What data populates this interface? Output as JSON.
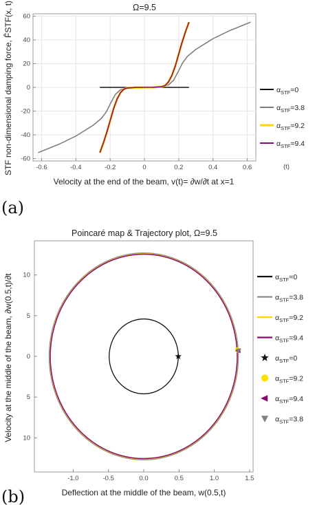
{
  "panel_labels": [
    "(a)",
    "(b)"
  ],
  "chart_data": [
    {
      "type": "line",
      "title": "Ω=9.5",
      "xlabel": "Velocity at the end of the beam,  v(t)= ∂w/∂t  at x=1",
      "ylabel": "STF non-dimensional damping force,  F̂STF(x, t)",
      "stray_label": "(t)",
      "xlim": [
        -0.65,
        0.65
      ],
      "ylim": [
        -62,
        62
      ],
      "xticks": [
        -0.6,
        -0.4,
        -0.2,
        0,
        0.2,
        0.4,
        0.6
      ],
      "xtick_labels": [
        "-0.6",
        "-0.4",
        "-0.2",
        "0",
        "0.2",
        "0.4",
        "0.6"
      ],
      "yticks": [
        -60,
        -40,
        -20,
        0,
        20,
        40,
        60
      ],
      "ytick_labels": [
        "-60",
        "-40",
        "-20",
        "0",
        "20",
        "40",
        "60"
      ],
      "grid": true,
      "legend_position": "right",
      "series": [
        {
          "name": "αSTF=0",
          "sym": "α",
          "sub": "STF",
          "val": "=0",
          "color": "#111111",
          "x": [
            -0.26,
            0.26
          ],
          "y": [
            0,
            0
          ]
        },
        {
          "name": "αSTF=3.8",
          "sym": "α",
          "sub": "STF",
          "val": "=3.8",
          "color": "#7f7f7f",
          "x": [
            -0.62,
            -0.5,
            -0.4,
            -0.3,
            -0.25,
            -0.22,
            -0.2,
            -0.17,
            -0.14,
            -0.1,
            -0.05,
            0,
            0.05,
            0.1,
            0.14,
            0.17,
            0.2,
            0.22,
            0.25,
            0.3,
            0.4,
            0.5,
            0.62
          ],
          "y": [
            -55,
            -48,
            -41,
            -32,
            -26,
            -20,
            -14,
            -6,
            -2,
            -0.4,
            -0.05,
            0,
            0.05,
            0.4,
            2,
            6,
            14,
            20,
            26,
            32,
            41,
            48,
            55
          ]
        },
        {
          "name": "αSTF=9.2",
          "sym": "α",
          "sub": "STF",
          "val": "=9.2",
          "color": "#ffd700",
          "x": [
            -0.26,
            -0.24,
            -0.22,
            -0.2,
            -0.18,
            -0.16,
            -0.14,
            -0.12,
            -0.1,
            -0.05,
            0,
            0.05,
            0.1,
            0.12,
            0.14,
            0.16,
            0.18,
            0.2,
            0.22,
            0.24,
            0.26
          ],
          "y": [
            -55,
            -47,
            -38,
            -28,
            -18,
            -10,
            -4.5,
            -1.5,
            -0.5,
            -0.05,
            0,
            0.05,
            0.5,
            1.5,
            4.5,
            10,
            18,
            28,
            38,
            47,
            55
          ]
        },
        {
          "name": "αSTF=9.4",
          "sym": "α",
          "sub": "STF",
          "val": "=9.4",
          "color": "#8b0a6f",
          "x": [
            -0.26,
            -0.24,
            -0.22,
            -0.2,
            -0.18,
            -0.16,
            -0.14,
            -0.12,
            -0.1,
            -0.05,
            0,
            0.05,
            0.1,
            0.12,
            0.14,
            0.16,
            0.18,
            0.2,
            0.22,
            0.24,
            0.26
          ],
          "y": [
            -55,
            -47,
            -38,
            -28,
            -18,
            -10,
            -4.5,
            -1.5,
            -0.5,
            -0.05,
            0,
            0.05,
            0.5,
            1.5,
            4.5,
            10,
            18,
            28,
            38,
            47,
            55
          ]
        }
      ]
    },
    {
      "type": "line",
      "title": "Poincaré map & Trajectory plot, Ω=9.5",
      "xlabel": "Deflection at the middle of the beam, w(0.5,t)",
      "ylabel": "Velocity at the middle of the beam,  ∂w(0.5,t)/∂t",
      "xlim": [
        -1.55,
        1.55
      ],
      "ylim": [
        -14.2,
        14.2
      ],
      "xticks": [
        -1.0,
        -0.5,
        0.0,
        0.5,
        1.0,
        1.5
      ],
      "xtick_labels": [
        "-1.0",
        "-0.5",
        "0.0",
        "0.5",
        "1.0",
        "1.5"
      ],
      "yticks": [
        -10,
        -5,
        0,
        5,
        10
      ],
      "ytick_labels": [
        "10",
        "5",
        "0",
        "5",
        "10"
      ],
      "grid": false,
      "legend_position": "right",
      "orbits": [
        {
          "name": "αSTF=0",
          "sym": "α",
          "sub": "STF",
          "val": "=0",
          "color": "#111111",
          "cx": 0,
          "cy": 0,
          "rx": 0.49,
          "ry": 4.6
        },
        {
          "name": "αSTF=3.8",
          "sym": "α",
          "sub": "STF",
          "val": "=3.8",
          "color": "#8a8a8a",
          "cx": 0,
          "cy": 0,
          "rx": 1.34,
          "ry": 12.7
        },
        {
          "name": "αSTF=9.2",
          "sym": "α",
          "sub": "STF",
          "val": "=9.2",
          "color": "#ffd700",
          "cx": 0,
          "cy": 0,
          "rx": 1.33,
          "ry": 12.6
        },
        {
          "name": "αSTF=9.4",
          "sym": "α",
          "sub": "STF",
          "val": "=9.4",
          "color": "#8b0a6f",
          "cx": 0,
          "cy": 0,
          "rx": 1.325,
          "ry": 12.55
        }
      ],
      "poincare_points": [
        {
          "name": "αSTF=0",
          "sym": "α",
          "sub": "STF",
          "val": "=0",
          "marker": "star",
          "color": "#111111",
          "x": 0.49,
          "y": 0
        },
        {
          "name": "αSTF=9.2",
          "sym": "α",
          "sub": "STF",
          "val": "=9.2",
          "marker": "circle",
          "color": "#ffe000",
          "x": 1.33,
          "y": 0.8
        },
        {
          "name": "αSTF=9.4",
          "sym": "α",
          "sub": "STF",
          "val": "=9.4",
          "marker": "triangle-left",
          "color": "#8b0a6f",
          "x": 1.34,
          "y": 0.7
        },
        {
          "name": "αSTF=3.8",
          "sym": "α",
          "sub": "STF",
          "val": "=3.8",
          "marker": "triangle-down",
          "color": "#808080",
          "x": 1.345,
          "y": 0.7
        }
      ]
    }
  ]
}
